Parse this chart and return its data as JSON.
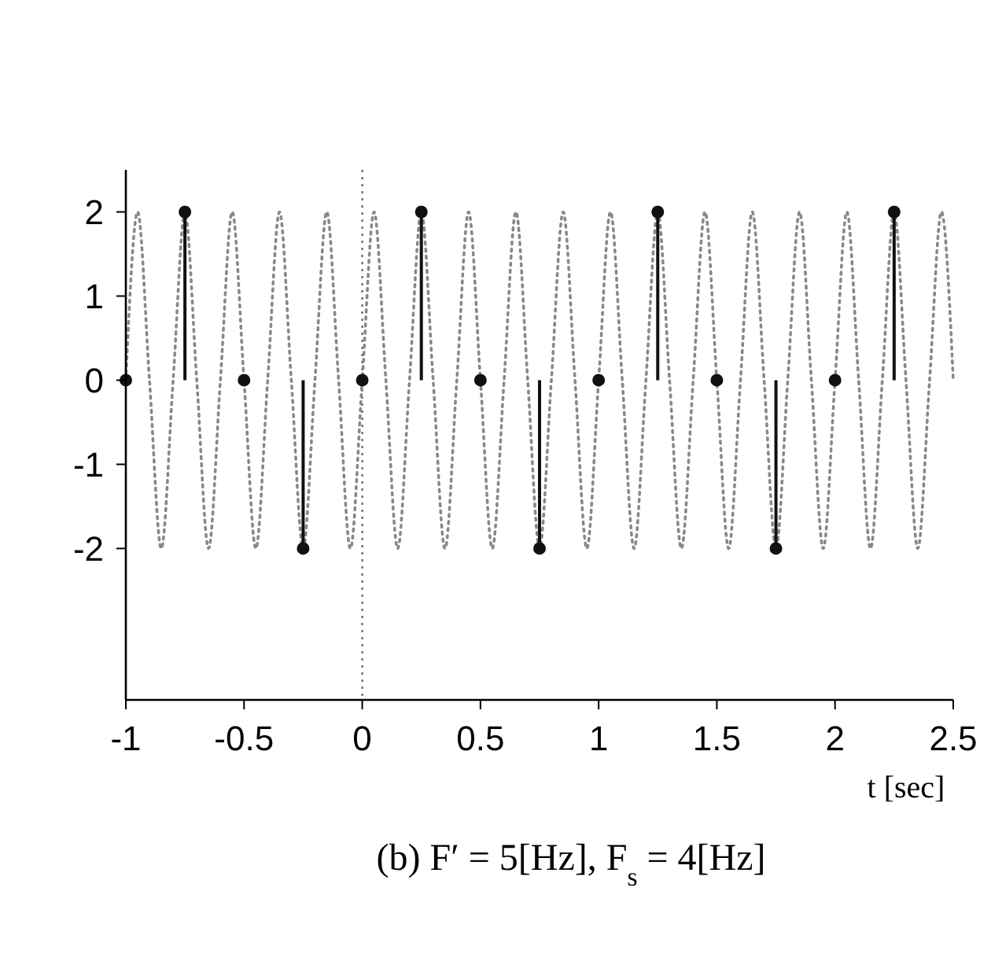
{
  "chart_data": {
    "type": "line",
    "title": "(b) F′ = 5[Hz], F$_{s}$ = 4[Hz]",
    "xlabel": "t [sec]",
    "xlim": [
      -1,
      2.5
    ],
    "xticks": [
      -1,
      -0.5,
      0,
      0.5,
      1,
      1.5,
      2,
      2.5
    ],
    "ylim": [
      -3.8,
      2.5
    ],
    "yticks": [
      -2,
      -1,
      0,
      1,
      2
    ],
    "grid": false,
    "ref_lines": [
      {
        "axis": "x",
        "value": 0,
        "line_style": "dotted",
        "color": "#555555"
      }
    ],
    "series": [
      {
        "line_style": "dotted",
        "color": "#888888",
        "x": [
          -1,
          -0.95,
          -0.9,
          -0.85,
          -0.8,
          -0.75,
          -0.7,
          -0.65,
          -0.6,
          -0.55,
          -0.5,
          -0.45,
          -0.4,
          -0.35,
          -0.3,
          -0.25,
          -0.2,
          -0.15,
          -0.1,
          -0.05,
          0,
          0.05,
          0.1,
          0.15,
          0.2,
          0.25,
          0.3,
          0.35,
          0.4,
          0.45,
          0.5,
          0.55,
          0.6,
          0.65,
          0.7,
          0.75,
          0.8,
          0.85,
          0.9,
          0.95,
          1,
          1.05,
          1.1,
          1.15,
          1.2,
          1.25,
          1.3,
          1.35,
          1.4,
          1.45,
          1.5,
          1.55,
          1.6,
          1.65,
          1.7,
          1.75,
          1.8,
          1.85,
          1.9,
          1.95,
          2,
          2.05,
          2.1,
          2.15,
          2.2,
          2.25,
          2.3,
          2.35,
          2.4,
          2.45,
          2.5
        ],
        "values": [
          0,
          2,
          0,
          -2,
          0,
          2,
          0,
          -2,
          0,
          2,
          0,
          -2,
          0,
          2,
          0,
          -2,
          0,
          2,
          0,
          -2,
          0,
          2,
          0,
          -2,
          0,
          2,
          0,
          -2,
          0,
          2,
          0,
          -2,
          0,
          2,
          0,
          -2,
          0,
          2,
          0,
          -2,
          0,
          2,
          0,
          -2,
          0,
          2,
          0,
          -2,
          0,
          2,
          0,
          -2,
          0,
          2,
          0,
          -2,
          0,
          2,
          0,
          -2,
          0,
          2,
          0,
          -2,
          0,
          2,
          0,
          -2,
          0,
          2,
          0
        ]
      },
      {
        "type": "lollipop",
        "color": "#111111",
        "x": [
          -1,
          -0.75,
          -0.5,
          -0.25,
          0,
          0.25,
          0.5,
          0.75,
          1,
          1.25,
          1.5,
          1.75,
          2,
          2.25
        ],
        "values": [
          0,
          2,
          0,
          -2,
          0,
          2,
          0,
          -2,
          0,
          2,
          0,
          -2,
          0,
          2
        ]
      }
    ]
  }
}
